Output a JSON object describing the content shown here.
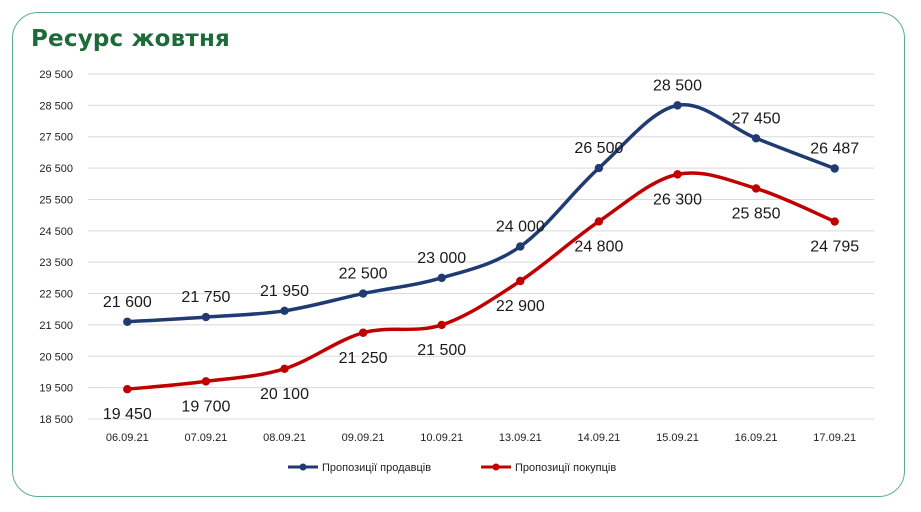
{
  "chart_data": {
    "type": "line",
    "title": "Ресурс жовтня",
    "categories": [
      "06.09.21",
      "07.09.21",
      "08.09.21",
      "09.09.21",
      "10.09.21",
      "13.09.21",
      "14.09.21",
      "15.09.21",
      "16.09.21",
      "17.09.21"
    ],
    "y_ticks": [
      "29 500",
      "28 500",
      "27 500",
      "26 500",
      "25 500",
      "24 500",
      "23 500",
      "22 500",
      "21 500",
      "20 500",
      "19 500",
      "18 500"
    ],
    "ylim": [
      18500,
      29500
    ],
    "grid": true,
    "legend_position": "bottom",
    "series": [
      {
        "name": "Пропозиції продавців",
        "color": "#203a72",
        "values": [
          21600,
          21750,
          21950,
          22500,
          23000,
          24000,
          26500,
          28500,
          27450,
          26487
        ],
        "labels": [
          "21 600",
          "21 750",
          "21 950",
          "22 500",
          "23 000",
          "24 000",
          "26 500",
          "28 500",
          "27 450",
          "26 487"
        ],
        "label_position": "above"
      },
      {
        "name": "Пропозиції покупців",
        "color": "#c00000",
        "values": [
          19450,
          19700,
          20100,
          21250,
          21500,
          22900,
          24800,
          26300,
          25850,
          24795
        ],
        "labels": [
          "19 450",
          "19 700",
          "20 100",
          "21 250",
          "21 500",
          "22 900",
          "24 800",
          "26 300",
          "25 850",
          "24 795"
        ],
        "label_position": "below"
      }
    ]
  }
}
